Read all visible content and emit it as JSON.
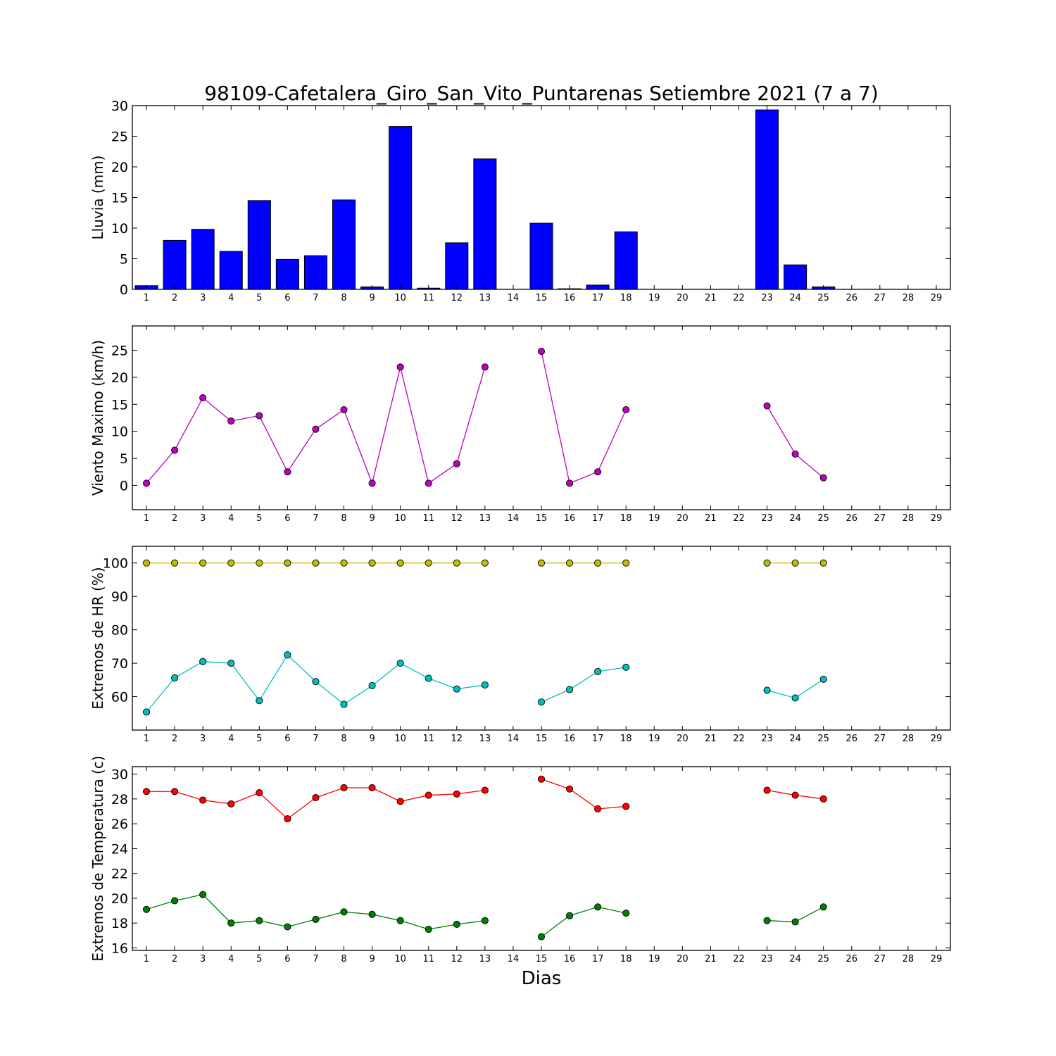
{
  "title": "98109-Cafetalera_Giro_San_Vito_Puntarenas Setiembre 2021  (7 a 7)",
  "xlabel": "Dias",
  "chart_data": [
    {
      "type": "bar",
      "ylabel": "Lluvia (mm)",
      "xlim": [
        0.5,
        29.5
      ],
      "ylim": [
        0,
        30
      ],
      "yticks": [
        0,
        5,
        10,
        15,
        20,
        25,
        30
      ],
      "xticks": [
        1,
        2,
        3,
        4,
        5,
        6,
        7,
        8,
        9,
        10,
        11,
        12,
        13,
        14,
        15,
        16,
        17,
        18,
        19,
        20,
        21,
        22,
        23,
        24,
        25,
        26,
        27,
        28,
        29
      ],
      "grid": false,
      "series": [
        {
          "color": "#0000ff",
          "x": [
            1,
            2,
            3,
            4,
            5,
            6,
            7,
            8,
            9,
            10,
            11,
            12,
            13,
            14,
            15,
            16,
            17,
            18,
            19,
            20,
            21,
            22,
            23,
            24,
            25,
            26,
            27,
            28,
            29
          ],
          "values": [
            0.6,
            8.0,
            9.8,
            6.2,
            14.5,
            4.9,
            5.5,
            14.6,
            0.4,
            26.6,
            0.2,
            7.6,
            21.3,
            0,
            10.8,
            0.1,
            0.7,
            9.4,
            0,
            0,
            0,
            0,
            29.3,
            4.0,
            0.4,
            0,
            0,
            0,
            0
          ]
        }
      ]
    },
    {
      "type": "line",
      "ylabel": "Viento Maximo (km/h)",
      "xlim": [
        0.5,
        29.5
      ],
      "ylim": [
        -4.5,
        29.5
      ],
      "yticks": [
        0,
        5,
        10,
        15,
        20,
        25
      ],
      "xticks": [
        1,
        2,
        3,
        4,
        5,
        6,
        7,
        8,
        9,
        10,
        11,
        12,
        13,
        14,
        15,
        16,
        17,
        18,
        19,
        20,
        21,
        22,
        23,
        24,
        25,
        26,
        27,
        28,
        29
      ],
      "grid": false,
      "series": [
        {
          "color": "#bf00bf",
          "x": [
            1,
            2,
            3,
            4,
            5,
            6,
            7,
            8,
            9,
            10,
            11,
            12,
            13,
            14,
            15,
            16,
            17,
            18,
            19,
            20,
            21,
            22,
            23,
            24,
            25
          ],
          "values": [
            0.4,
            6.5,
            16.2,
            11.9,
            12.9,
            2.5,
            10.4,
            14.0,
            0.4,
            21.9,
            0.4,
            4.0,
            21.9,
            null,
            24.8,
            0.4,
            2.5,
            14.0,
            null,
            null,
            null,
            null,
            14.7,
            5.8,
            1.4
          ]
        }
      ]
    },
    {
      "type": "line",
      "ylabel": "Extremos de HR (%)",
      "xlim": [
        0.5,
        29.5
      ],
      "ylim": [
        50,
        105
      ],
      "yticks": [
        60,
        70,
        80,
        90,
        100
      ],
      "xticks": [
        1,
        2,
        3,
        4,
        5,
        6,
        7,
        8,
        9,
        10,
        11,
        12,
        13,
        14,
        15,
        16,
        17,
        18,
        19,
        20,
        21,
        22,
        23,
        24,
        25,
        26,
        27,
        28,
        29
      ],
      "grid": false,
      "series": [
        {
          "color": "#bfbf00",
          "x": [
            1,
            2,
            3,
            4,
            5,
            6,
            7,
            8,
            9,
            10,
            11,
            12,
            13,
            14,
            15,
            16,
            17,
            18,
            19,
            20,
            21,
            22,
            23,
            24,
            25
          ],
          "values": [
            100,
            100,
            100,
            100,
            100,
            100,
            100,
            100,
            100,
            100,
            100,
            100,
            100,
            null,
            100,
            100,
            100,
            100,
            null,
            null,
            null,
            null,
            100,
            100,
            100
          ]
        },
        {
          "color": "#00bfbf",
          "x": [
            1,
            2,
            3,
            4,
            5,
            6,
            7,
            8,
            9,
            10,
            11,
            12,
            13,
            14,
            15,
            16,
            17,
            18,
            19,
            20,
            21,
            22,
            23,
            24,
            25
          ],
          "values": [
            55.4,
            65.6,
            70.5,
            70.0,
            58.8,
            72.5,
            64.5,
            57.7,
            63.3,
            70.0,
            65.5,
            62.3,
            63.5,
            null,
            58.4,
            62.1,
            67.5,
            68.8,
            null,
            null,
            null,
            null,
            61.9,
            59.6,
            65.2
          ]
        }
      ]
    },
    {
      "type": "line",
      "ylabel": "Extremos de Temperatura (c)",
      "xlim": [
        0.5,
        29.5
      ],
      "ylim": [
        15.8,
        30.6
      ],
      "yticks": [
        16,
        18,
        20,
        22,
        24,
        26,
        28,
        30
      ],
      "xticks": [
        1,
        2,
        3,
        4,
        5,
        6,
        7,
        8,
        9,
        10,
        11,
        12,
        13,
        14,
        15,
        16,
        17,
        18,
        19,
        20,
        21,
        22,
        23,
        24,
        25,
        26,
        27,
        28,
        29
      ],
      "grid": false,
      "series": [
        {
          "color": "#ff0000",
          "x": [
            1,
            2,
            3,
            4,
            5,
            6,
            7,
            8,
            9,
            10,
            11,
            12,
            13,
            14,
            15,
            16,
            17,
            18,
            19,
            20,
            21,
            22,
            23,
            24,
            25
          ],
          "values": [
            28.6,
            28.6,
            27.9,
            27.6,
            28.5,
            26.4,
            28.1,
            28.9,
            28.9,
            27.8,
            28.3,
            28.4,
            28.7,
            null,
            29.6,
            28.8,
            27.2,
            27.4,
            null,
            null,
            null,
            null,
            28.7,
            28.3,
            28.0
          ]
        },
        {
          "color": "#008000",
          "x": [
            1,
            2,
            3,
            4,
            5,
            6,
            7,
            8,
            9,
            10,
            11,
            12,
            13,
            14,
            15,
            16,
            17,
            18,
            19,
            20,
            21,
            22,
            23,
            24,
            25
          ],
          "values": [
            19.1,
            19.8,
            20.3,
            18.0,
            18.2,
            17.7,
            18.3,
            18.9,
            18.7,
            18.2,
            17.5,
            17.9,
            18.2,
            null,
            16.9,
            18.6,
            19.3,
            18.8,
            null,
            null,
            null,
            null,
            18.2,
            18.1,
            19.3
          ]
        }
      ]
    }
  ]
}
